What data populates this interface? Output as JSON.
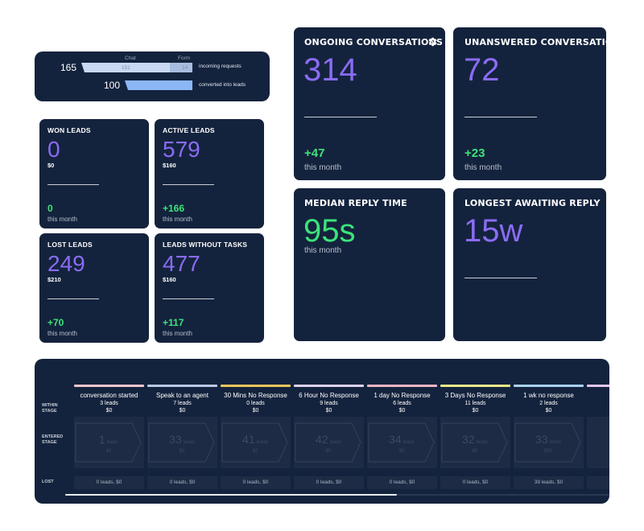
{
  "funnel": {
    "incoming_count": "165",
    "converted_count": "100",
    "chat_label": "Chat",
    "form_label": "Form",
    "chat_value": "151",
    "form_value": "14",
    "incoming_label": "incoming requests",
    "converted_label": "converted into leads",
    "colors": {
      "chat": "#c9d8f3",
      "form": "#a7bde0",
      "converted": "#8cb7f5"
    }
  },
  "leads": {
    "won": {
      "title": "WON LEADS",
      "value": "0",
      "amount": "$0",
      "delta": "0",
      "period": "this month"
    },
    "active": {
      "title": "ACTIVE LEADS",
      "value": "579",
      "amount": "$160",
      "delta": "+166",
      "period": "this month"
    },
    "lost": {
      "title": "LOST LEADS",
      "value": "249",
      "amount": "$210",
      "delta": "+70",
      "period": "this month"
    },
    "without_tasks": {
      "title": "LEADS WITHOUT TASKS",
      "value": "477",
      "amount": "$160",
      "delta": "+117",
      "period": "this month"
    }
  },
  "conversations": {
    "ongoing": {
      "title": "ONGOING CONVERSATIONS",
      "value": "314",
      "delta": "+47",
      "period": "this month",
      "icon": "gear-icon"
    },
    "unanswered": {
      "title": "UNANSWERED CONVERSATIOI",
      "value": "72",
      "delta": "+23",
      "period": "this month"
    },
    "median": {
      "title": "MEDIAN REPLY TIME",
      "value": "95s",
      "period": "this month"
    },
    "longest": {
      "title": "LONGEST AWAITING REPLY",
      "value": "15w"
    }
  },
  "pipeline": {
    "row_labels": {
      "within": "WITHIN\nSTAGE",
      "entered": "ENTERED\nSTAGE",
      "lost": "LOST"
    },
    "stages": [
      {
        "name": "conversation started",
        "leads": "3 leads",
        "value": "$0",
        "entered_count": "1",
        "entered_unit": "leads",
        "entered_value": "$0",
        "lost": "0 leads, $0",
        "color": "#f5c6cf"
      },
      {
        "name": "Speak to an agent",
        "leads": "7 leads",
        "value": "$0",
        "entered_count": "33",
        "entered_unit": "leads",
        "entered_value": "$0",
        "lost": "0 leads, $0",
        "color": "#b9c9e6"
      },
      {
        "name": "30 Mins No Response",
        "leads": "0 leads",
        "value": "$0",
        "entered_count": "41",
        "entered_unit": "leads",
        "entered_value": "$0",
        "lost": "0 leads, $0",
        "color": "#f2c55a"
      },
      {
        "name": "6 Hour No Response",
        "leads": "9 leads",
        "value": "$0",
        "entered_count": "42",
        "entered_unit": "leads",
        "entered_value": "$0",
        "lost": "0 leads, $0",
        "color": "#dcd2ec"
      },
      {
        "name": "1 day No Response",
        "leads": "6 leads",
        "value": "$0",
        "entered_count": "34",
        "entered_unit": "leads",
        "entered_value": "$0",
        "lost": "0 leads, $0",
        "color": "#f3b6c6"
      },
      {
        "name": "3 Days No Response",
        "leads": "11 leads",
        "value": "$0",
        "entered_count": "32",
        "entered_unit": "leads",
        "entered_value": "$0",
        "lost": "0 leads, $0",
        "color": "#e8e88a"
      },
      {
        "name": "1 wk no response",
        "leads": "2 leads",
        "value": "$0",
        "entered_count": "33",
        "entered_unit": "leads",
        "entered_value": "$50",
        "lost": "39 leads, $0",
        "color": "#a9d2f2"
      }
    ],
    "partial_stage_color": "#e4c6ec"
  }
}
